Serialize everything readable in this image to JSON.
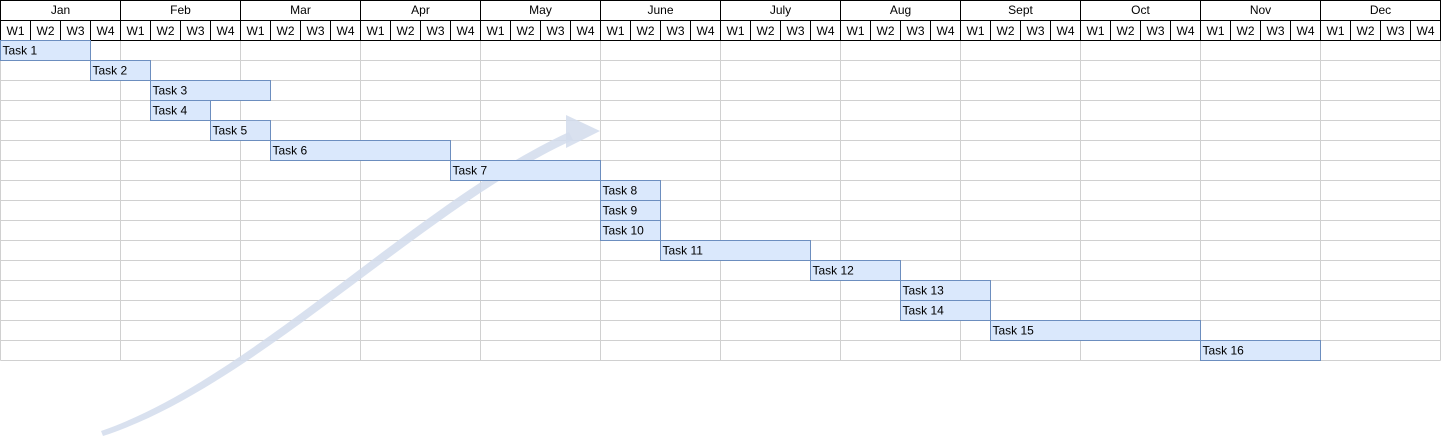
{
  "timeline": {
    "months": [
      "Jan",
      "Feb",
      "Mar",
      "Apr",
      "May",
      "June",
      "July",
      "Aug",
      "Sept",
      "Oct",
      "Nov",
      "Dec"
    ],
    "weeks": [
      "W1",
      "W2",
      "W3",
      "W4"
    ]
  },
  "tasks": [
    {
      "label": "Task 1",
      "start_week": 0,
      "duration_weeks": 3
    },
    {
      "label": "Task 2",
      "start_week": 3,
      "duration_weeks": 2
    },
    {
      "label": "Task 3",
      "start_week": 5,
      "duration_weeks": 4
    },
    {
      "label": "Task 4",
      "start_week": 5,
      "duration_weeks": 2
    },
    {
      "label": "Task 5",
      "start_week": 7,
      "duration_weeks": 2
    },
    {
      "label": "Task 6",
      "start_week": 9,
      "duration_weeks": 6
    },
    {
      "label": "Task 7",
      "start_week": 15,
      "duration_weeks": 5
    },
    {
      "label": "Task 8",
      "start_week": 20,
      "duration_weeks": 2
    },
    {
      "label": "Task 9",
      "start_week": 20,
      "duration_weeks": 2
    },
    {
      "label": "Task 10",
      "start_week": 20,
      "duration_weeks": 2
    },
    {
      "label": "Task 11",
      "start_week": 22,
      "duration_weeks": 5
    },
    {
      "label": "Task 12",
      "start_week": 27,
      "duration_weeks": 3
    },
    {
      "label": "Task 13",
      "start_week": 30,
      "duration_weeks": 3
    },
    {
      "label": "Task 14",
      "start_week": 30,
      "duration_weeks": 3
    },
    {
      "label": "Task 15",
      "start_week": 33,
      "duration_weeks": 7
    },
    {
      "label": "Task 16",
      "start_week": 40,
      "duration_weeks": 4
    }
  ],
  "colors": {
    "bar_fill": "#dae8fc",
    "bar_stroke": "#6c8ebf",
    "grid_line": "#d0d0d0",
    "header_line": "#000000",
    "arrow": "#d2dcec"
  }
}
